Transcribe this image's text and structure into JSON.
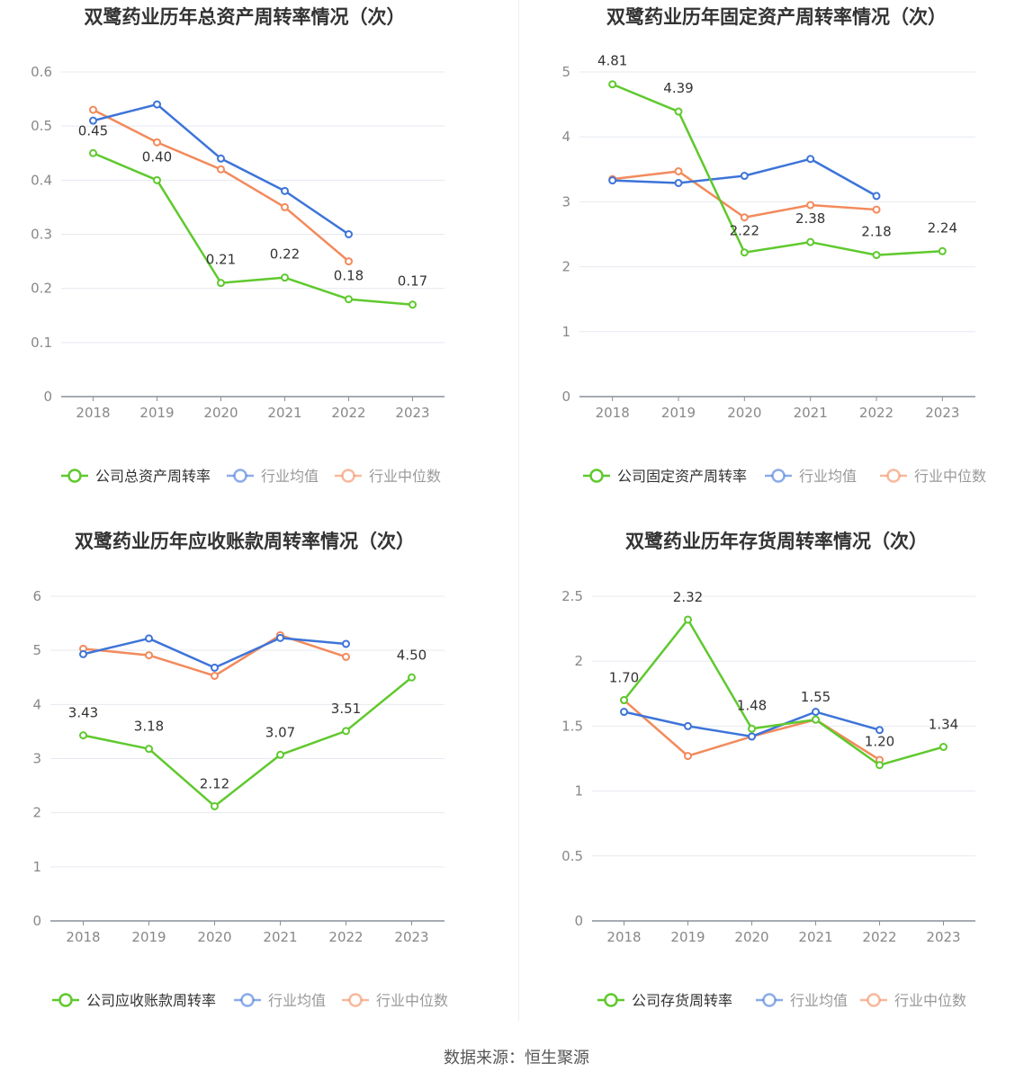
{
  "source_label": "数据来源：恒生聚源",
  "colors": {
    "company": "#5fc92e",
    "avg": "#3d74d9",
    "median": "#f28a5c",
    "grid": "#e6e9f0",
    "axis": "#8a8f99",
    "text": "#666666",
    "title": "#333333"
  },
  "chart_data": [
    {
      "type": "line",
      "title": "双鹭药业历年总资产周转率情况（次）",
      "categories": [
        "2018",
        "2019",
        "2020",
        "2021",
        "2022",
        "2023"
      ],
      "yticks": [
        "0",
        "0.1",
        "0.2",
        "0.3",
        "0.4",
        "0.5",
        "0.6"
      ],
      "ylim": [
        0,
        0.6
      ],
      "grid": true,
      "legend_position": "bottom",
      "series": [
        {
          "name": "公司总资产周转率",
          "role": "company",
          "values": [
            0.45,
            0.4,
            0.21,
            0.22,
            0.18,
            0.17
          ],
          "labels": [
            "0.45",
            "0.40",
            "0.21",
            "0.22",
            "0.18",
            "0.17"
          ]
        },
        {
          "name": "行业均值",
          "role": "avg",
          "values": [
            0.51,
            0.54,
            0.44,
            0.38,
            0.3,
            null
          ]
        },
        {
          "name": "行业中位数",
          "role": "median",
          "values": [
            0.53,
            0.47,
            0.42,
            0.35,
            0.25,
            null
          ]
        }
      ]
    },
    {
      "type": "line",
      "title": "双鹭药业历年固定资产周转率情况（次）",
      "categories": [
        "2018",
        "2019",
        "2020",
        "2021",
        "2022",
        "2023"
      ],
      "yticks": [
        "0",
        "1",
        "2",
        "3",
        "4",
        "5"
      ],
      "ylim": [
        0,
        5
      ],
      "grid": true,
      "legend_position": "bottom",
      "series": [
        {
          "name": "公司固定资产周转率",
          "role": "company",
          "values": [
            4.81,
            4.39,
            2.22,
            2.38,
            2.18,
            2.24
          ],
          "labels": [
            "4.81",
            "4.39",
            "2.22",
            "2.38",
            "2.18",
            "2.24"
          ]
        },
        {
          "name": "行业均值",
          "role": "avg",
          "values": [
            3.33,
            3.29,
            3.4,
            3.66,
            3.09,
            null
          ]
        },
        {
          "name": "行业中位数",
          "role": "median",
          "values": [
            3.35,
            3.47,
            2.76,
            2.95,
            2.88,
            null
          ]
        }
      ]
    },
    {
      "type": "line",
      "title": "双鹭药业历年应收账款周转率情况（次）",
      "categories": [
        "2018",
        "2019",
        "2020",
        "2021",
        "2022",
        "2023"
      ],
      "yticks": [
        "0",
        "1",
        "2",
        "3",
        "4",
        "5",
        "6"
      ],
      "ylim": [
        0,
        6
      ],
      "grid": true,
      "legend_position": "bottom",
      "series": [
        {
          "name": "公司应收账款周转率",
          "role": "company",
          "values": [
            3.43,
            3.18,
            2.12,
            3.07,
            3.51,
            4.5
          ],
          "labels": [
            "3.43",
            "3.18",
            "2.12",
            "3.07",
            "3.51",
            "4.50"
          ]
        },
        {
          "name": "行业均值",
          "role": "avg",
          "values": [
            4.93,
            5.22,
            4.68,
            5.23,
            5.12,
            null
          ]
        },
        {
          "name": "行业中位数",
          "role": "median",
          "values": [
            5.03,
            4.91,
            4.53,
            5.28,
            4.88,
            null
          ]
        }
      ]
    },
    {
      "type": "line",
      "title": "双鹭药业历年存货周转率情况（次）",
      "categories": [
        "2018",
        "2019",
        "2020",
        "2021",
        "2022",
        "2023"
      ],
      "yticks": [
        "0",
        "0.5",
        "1",
        "1.5",
        "2",
        "2.5"
      ],
      "ylim": [
        0,
        2.5
      ],
      "grid": true,
      "legend_position": "bottom",
      "series": [
        {
          "name": "公司存货周转率",
          "role": "company",
          "values": [
            1.7,
            2.32,
            1.48,
            1.55,
            1.2,
            1.34
          ],
          "labels": [
            "1.70",
            "2.32",
            "1.48",
            "1.55",
            "1.20",
            "1.34"
          ]
        },
        {
          "name": "行业均值",
          "role": "avg",
          "values": [
            1.61,
            1.5,
            1.42,
            1.61,
            1.47,
            null
          ]
        },
        {
          "name": "行业中位数",
          "role": "median",
          "values": [
            1.7,
            1.27,
            1.42,
            1.55,
            1.24,
            null
          ]
        }
      ]
    }
  ]
}
